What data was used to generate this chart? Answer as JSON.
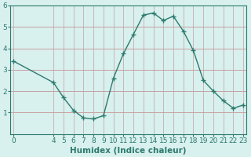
{
  "xlabel": "Humidex (Indice chaleur)",
  "ylabel": "",
  "x_values": [
    0,
    4,
    5,
    6,
    7,
    8,
    9,
    10,
    11,
    12,
    13,
    14,
    15,
    16,
    17,
    18,
    19,
    20,
    21,
    22,
    23
  ],
  "y_values": [
    3.4,
    2.4,
    1.7,
    1.1,
    0.75,
    0.7,
    0.85,
    2.6,
    3.75,
    4.65,
    5.55,
    5.65,
    5.3,
    5.5,
    4.8,
    3.9,
    2.5,
    2.0,
    1.55,
    1.2,
    1.35
  ],
  "line_color": "#2d7a6e",
  "marker": "+",
  "marker_size": 4,
  "bg_color": "#d8f0ee",
  "grid_color_h": "#c8a0a0",
  "grid_color_v": "#c8b8b8",
  "axis_color": "#2d7a6e",
  "tick_color": "#2d7a6e",
  "ylim": [
    0,
    6
  ],
  "yticks": [
    1,
    2,
    3,
    4,
    5,
    6
  ],
  "xticks": [
    0,
    4,
    5,
    6,
    7,
    8,
    9,
    10,
    11,
    12,
    13,
    14,
    15,
    16,
    17,
    18,
    19,
    20,
    21,
    22,
    23
  ],
  "xlabel_fontsize": 7.5,
  "tick_fontsize": 6.5,
  "linewidth": 1.0
}
